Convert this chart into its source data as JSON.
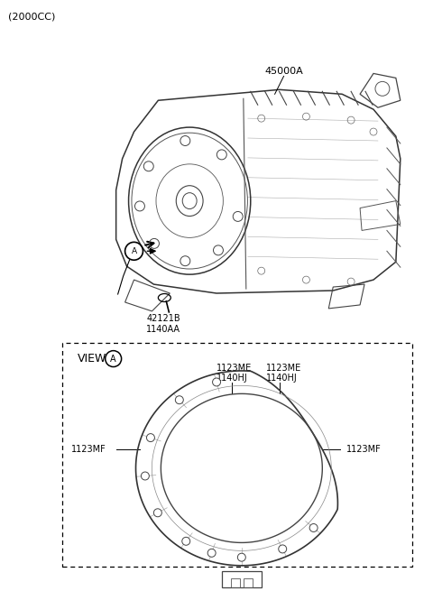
{
  "title": "(2000CC)",
  "bg_color": "#ffffff",
  "label_45000A": "45000A",
  "label_42121B": "42121B",
  "label_1140AA": "1140AA",
  "label_view_A": "VIEW",
  "label_1123ME_1": "1123ME",
  "label_1123ME_2": "1123ME",
  "label_1140HJ_1": "1140HJ",
  "label_1140HJ_2": "1140HJ",
  "label_1123MF_left": "1123MF",
  "label_1123MF_right": "1123MF",
  "font_size_title": 8,
  "font_size_labels": 7,
  "font_size_view": 8
}
